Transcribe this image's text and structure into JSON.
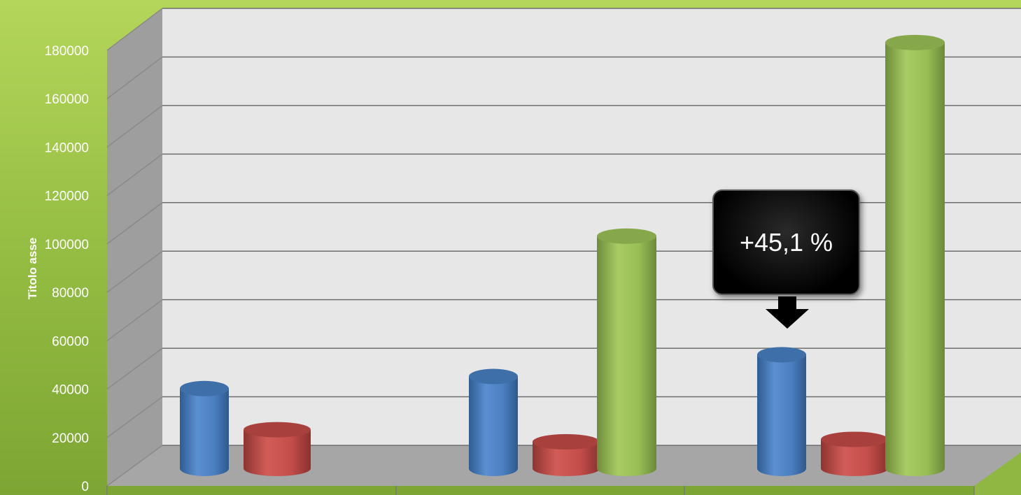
{
  "chart_data": {
    "type": "bar",
    "style": "3d-cylinder",
    "categories": [
      "",
      "",
      ""
    ],
    "series": [
      {
        "values": [
          33000,
          38000,
          47000
        ],
        "color": "#4f81bd"
      },
      {
        "values": [
          16000,
          11000,
          12000
        ],
        "color": "#c0504d"
      },
      {
        "values": [
          0,
          96000,
          176000
        ],
        "color": "#9bbb59"
      }
    ],
    "title": "",
    "xlabel": "",
    "ylabel": "Titolo asse",
    "ylim": [
      0,
      180000
    ],
    "yticks": [
      "0",
      "20000",
      "40000",
      "60000",
      "80000",
      "100000",
      "120000",
      "140000",
      "160000",
      "180000"
    ],
    "grid": true,
    "legend": "none",
    "annotations": [
      {
        "text": "+45,1 %",
        "category_index": 2,
        "series_index": 0,
        "pointer": "down-arrow"
      }
    ]
  },
  "colors": {
    "background": "#9bc24a",
    "plot_wall": "#e7e7e7",
    "floor": "#a6a6a6",
    "callout": "#000000"
  }
}
